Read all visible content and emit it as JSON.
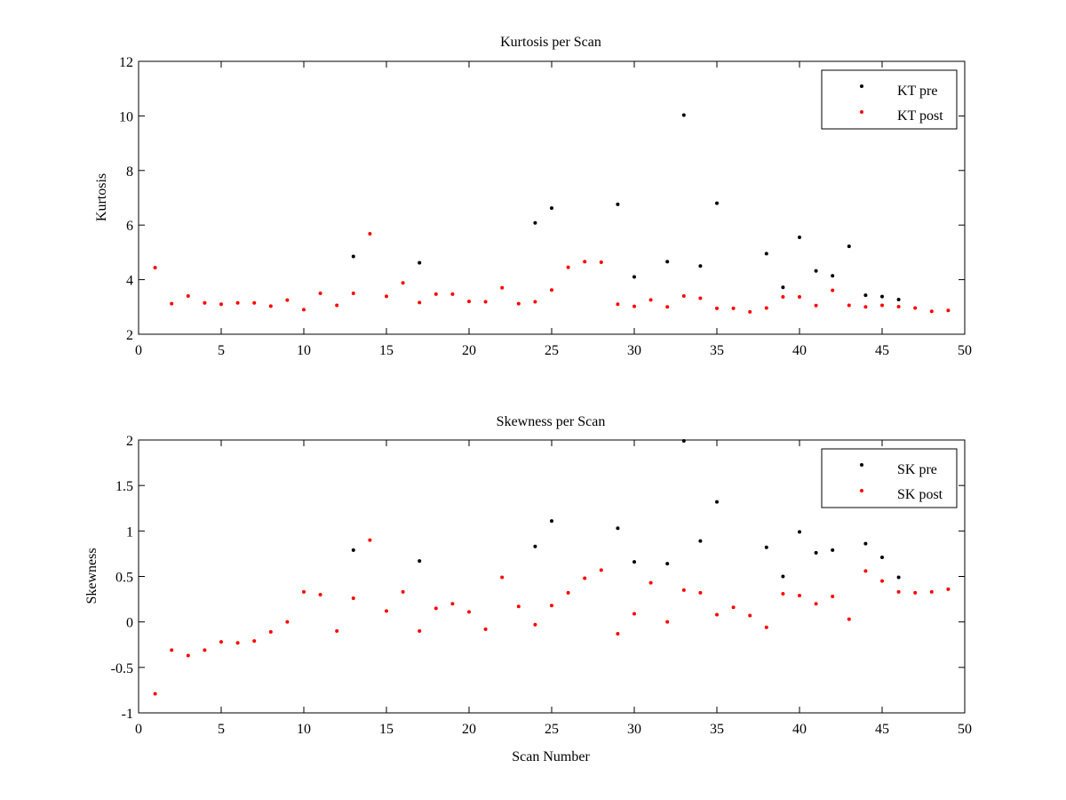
{
  "colors": {
    "pre": "#000000",
    "post": "#ff0000",
    "axis": "#000000",
    "background": "#ffffff"
  },
  "chart_data": [
    {
      "type": "scatter",
      "title": "Kurtosis per Scan",
      "xlabel": "",
      "ylabel": "Kurtosis",
      "xlim": [
        0,
        50
      ],
      "ylim": [
        2,
        12
      ],
      "xticks": [
        0,
        5,
        10,
        15,
        20,
        25,
        30,
        35,
        40,
        45,
        50
      ],
      "yticks": [
        2,
        4,
        6,
        8,
        10,
        12
      ],
      "grid": false,
      "legend_placement": "top-right",
      "series": [
        {
          "name": "KT pre",
          "color": "#000000",
          "points": [
            [
              13,
              4.85
            ],
            [
              17,
              4.62
            ],
            [
              24,
              6.08
            ],
            [
              25,
              6.62
            ],
            [
              29,
              6.76
            ],
            [
              30,
              4.1
            ],
            [
              32,
              4.66
            ],
            [
              33,
              10.03
            ],
            [
              34,
              4.5
            ],
            [
              35,
              6.8
            ],
            [
              38,
              4.95
            ],
            [
              39,
              3.72
            ],
            [
              40,
              5.55
            ],
            [
              41,
              4.32
            ],
            [
              42,
              4.14
            ],
            [
              43,
              5.22
            ],
            [
              44,
              3.43
            ],
            [
              45,
              3.38
            ],
            [
              46,
              3.27
            ]
          ]
        },
        {
          "name": "KT post",
          "color": "#ff0000",
          "points": [
            [
              1,
              4.44
            ],
            [
              2,
              3.12
            ],
            [
              3,
              3.4
            ],
            [
              4,
              3.15
            ],
            [
              5,
              3.1
            ],
            [
              6,
              3.15
            ],
            [
              7,
              3.15
            ],
            [
              8,
              3.03
            ],
            [
              9,
              3.25
            ],
            [
              10,
              2.9
            ],
            [
              11,
              3.5
            ],
            [
              12,
              3.06
            ],
            [
              13,
              3.5
            ],
            [
              14,
              5.68
            ],
            [
              15,
              3.39
            ],
            [
              16,
              3.88
            ],
            [
              17,
              3.16
            ],
            [
              18,
              3.47
            ],
            [
              19,
              3.47
            ],
            [
              20,
              3.2
            ],
            [
              21,
              3.19
            ],
            [
              22,
              3.7
            ],
            [
              23,
              3.12
            ],
            [
              24,
              3.19
            ],
            [
              25,
              3.62
            ],
            [
              26,
              4.45
            ],
            [
              27,
              4.66
            ],
            [
              28,
              4.64
            ],
            [
              29,
              3.1
            ],
            [
              30,
              3.02
            ],
            [
              31,
              3.26
            ],
            [
              32,
              3.0
            ],
            [
              33,
              3.4
            ],
            [
              34,
              3.32
            ],
            [
              35,
              2.95
            ],
            [
              36,
              2.95
            ],
            [
              37,
              2.82
            ],
            [
              38,
              2.96
            ],
            [
              39,
              3.37
            ],
            [
              40,
              3.37
            ],
            [
              41,
              3.05
            ],
            [
              42,
              3.61
            ],
            [
              43,
              3.06
            ],
            [
              44,
              3.0
            ],
            [
              45,
              3.06
            ],
            [
              46,
              3.01
            ],
            [
              47,
              2.96
            ],
            [
              48,
              2.84
            ],
            [
              49,
              2.87
            ]
          ]
        }
      ]
    },
    {
      "type": "scatter",
      "title": "Skewness per Scan",
      "xlabel": "Scan Number",
      "ylabel": "Skewness",
      "xlim": [
        0,
        50
      ],
      "ylim": [
        -1,
        2
      ],
      "xticks": [
        0,
        5,
        10,
        15,
        20,
        25,
        30,
        35,
        40,
        45,
        50
      ],
      "yticks": [
        -1,
        -0.5,
        0,
        0.5,
        1,
        1.5,
        2
      ],
      "grid": false,
      "legend_placement": "top-right",
      "series": [
        {
          "name": "SK pre",
          "color": "#000000",
          "points": [
            [
              13,
              0.79
            ],
            [
              17,
              0.67
            ],
            [
              24,
              0.83
            ],
            [
              25,
              1.11
            ],
            [
              29,
              1.03
            ],
            [
              30,
              0.66
            ],
            [
              32,
              0.64
            ],
            [
              33,
              1.99
            ],
            [
              34,
              0.89
            ],
            [
              35,
              1.32
            ],
            [
              38,
              0.82
            ],
            [
              39,
              0.5
            ],
            [
              40,
              0.99
            ],
            [
              41,
              0.76
            ],
            [
              42,
              0.79
            ],
            [
              44,
              0.86
            ],
            [
              45,
              0.71
            ],
            [
              46,
              0.49
            ]
          ]
        },
        {
          "name": "SK post",
          "color": "#ff0000",
          "points": [
            [
              1,
              -0.79
            ],
            [
              2,
              -0.31
            ],
            [
              3,
              -0.37
            ],
            [
              4,
              -0.31
            ],
            [
              5,
              -0.22
            ],
            [
              6,
              -0.23
            ],
            [
              7,
              -0.21
            ],
            [
              8,
              -0.11
            ],
            [
              9,
              0.0
            ],
            [
              10,
              0.33
            ],
            [
              11,
              0.3
            ],
            [
              12,
              -0.1
            ],
            [
              13,
              0.26
            ],
            [
              14,
              0.9
            ],
            [
              15,
              0.12
            ],
            [
              16,
              0.33
            ],
            [
              17,
              -0.1
            ],
            [
              18,
              0.15
            ],
            [
              19,
              0.2
            ],
            [
              20,
              0.11
            ],
            [
              21,
              -0.08
            ],
            [
              22,
              0.49
            ],
            [
              23,
              0.17
            ],
            [
              24,
              -0.03
            ],
            [
              25,
              0.18
            ],
            [
              26,
              0.32
            ],
            [
              27,
              0.48
            ],
            [
              28,
              0.57
            ],
            [
              29,
              -0.13
            ],
            [
              30,
              0.09
            ],
            [
              31,
              0.43
            ],
            [
              32,
              0.0
            ],
            [
              33,
              0.35
            ],
            [
              34,
              0.32
            ],
            [
              35,
              0.08
            ],
            [
              36,
              0.16
            ],
            [
              37,
              0.07
            ],
            [
              38,
              -0.06
            ],
            [
              39,
              0.31
            ],
            [
              40,
              0.29
            ],
            [
              41,
              0.2
            ],
            [
              42,
              0.28
            ],
            [
              43,
              0.03
            ],
            [
              44,
              0.56
            ],
            [
              45,
              0.45
            ],
            [
              46,
              0.33
            ],
            [
              47,
              0.32
            ],
            [
              48,
              0.33
            ],
            [
              49,
              0.36
            ]
          ]
        }
      ]
    }
  ]
}
